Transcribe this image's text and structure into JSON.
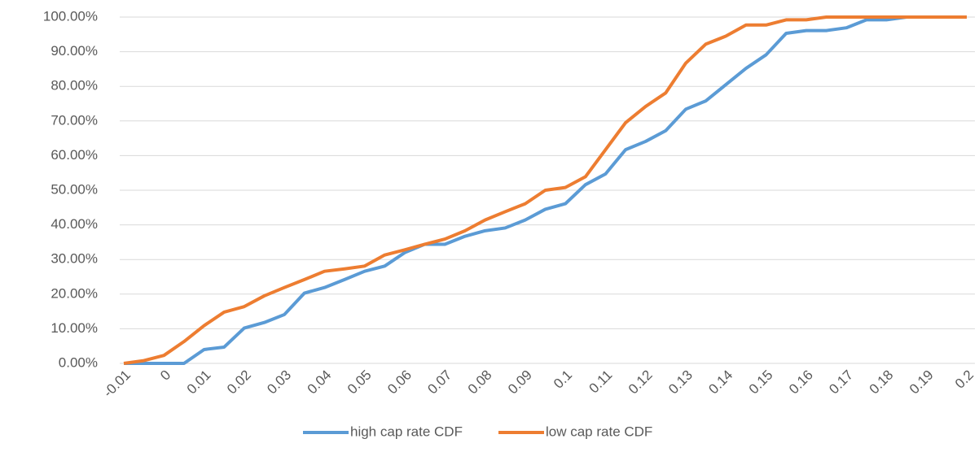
{
  "chart_data": {
    "type": "line",
    "categories": [
      "-0.01",
      null,
      "0",
      null,
      "0.01",
      null,
      "0.02",
      null,
      "0.03",
      null,
      "0.04",
      null,
      "0.05",
      null,
      "0.06",
      null,
      "0.07",
      null,
      "0.08",
      null,
      "0.09",
      null,
      "0.1",
      null,
      "0.11",
      null,
      "0.12",
      null,
      "0.13",
      null,
      "0.14",
      null,
      "0.15",
      null,
      "0.16",
      null,
      "0.17",
      null,
      "0.18",
      null,
      "0.19",
      null,
      "0.2"
    ],
    "series": [
      {
        "name": "high cap rate CDF",
        "color": "#5b9bd5",
        "values": [
          0,
          0,
          0,
          0,
          4.0,
          4.7,
          10.2,
          11.8,
          14.1,
          20.3,
          21.9,
          24.2,
          26.6,
          28.1,
          32.0,
          34.4,
          34.4,
          36.7,
          38.3,
          39.1,
          41.4,
          44.5,
          46.1,
          51.6,
          54.7,
          61.7,
          64.1,
          67.2,
          73.4,
          75.8,
          80.5,
          85.2,
          89.1,
          95.3,
          96.1,
          96.1,
          96.9,
          99.2,
          99.2,
          100,
          100,
          100,
          100
        ]
      },
      {
        "name": "low cap rate CDF",
        "color": "#ed7d31",
        "values": [
          0,
          0.8,
          2.3,
          6.3,
          10.9,
          14.8,
          16.4,
          19.5,
          21.9,
          24.2,
          26.6,
          27.3,
          28.1,
          31.3,
          32.8,
          34.4,
          35.9,
          38.3,
          41.4,
          43.8,
          46.1,
          50.0,
          50.8,
          53.9,
          61.7,
          69.5,
          74.2,
          78.1,
          86.7,
          92.2,
          94.5,
          97.7,
          97.7,
          99.2,
          99.2,
          100,
          100,
          100,
          100,
          100,
          100,
          100,
          100
        ]
      }
    ],
    "ylim": [
      0,
      100
    ],
    "yticks": [
      {
        "value": 0,
        "label": "0.00%"
      },
      {
        "value": 10,
        "label": "10.00%"
      },
      {
        "value": 20,
        "label": "20.00%"
      },
      {
        "value": 30,
        "label": "30.00%"
      },
      {
        "value": 40,
        "label": "40.00%"
      },
      {
        "value": 50,
        "label": "50.00%"
      },
      {
        "value": 60,
        "label": "60.00%"
      },
      {
        "value": 70,
        "label": "70.00%"
      },
      {
        "value": 80,
        "label": "80.00%"
      },
      {
        "value": 90,
        "label": "90.00%"
      },
      {
        "value": 100,
        "label": "100.00%"
      }
    ],
    "grid": true,
    "legend": "bottom"
  }
}
